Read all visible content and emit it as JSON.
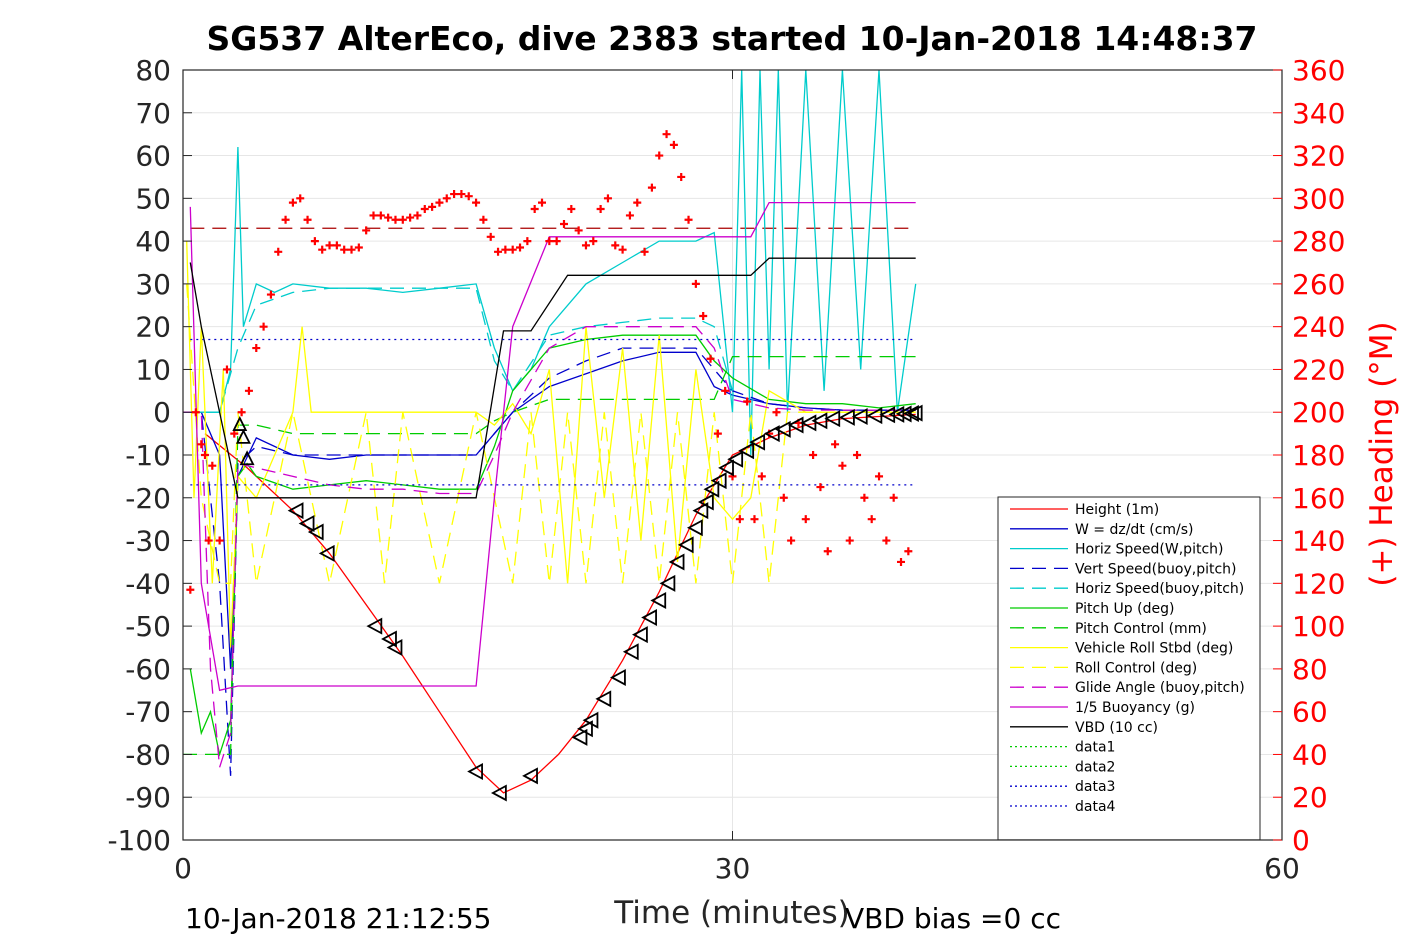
{
  "chart_data": {
    "type": "line",
    "title": "SG537 AlterEco, dive 2383 started 10-Jan-2018 14:48:37",
    "xlabel": "Time (minutes)",
    "ylabel": "",
    "y2label": "(+) Heading (°M)",
    "xlim": [
      0,
      60
    ],
    "ylim": [
      -100,
      80
    ],
    "y2lim": [
      0,
      360
    ],
    "x_ticks": [
      "0",
      "30",
      "60"
    ],
    "y_ticks": [
      "80",
      "70",
      "60",
      "50",
      "40",
      "30",
      "20",
      "10",
      "0",
      "-10",
      "-20",
      "-30",
      "-40",
      "-50",
      "-60",
      "-70",
      "-80",
      "-90",
      "-100"
    ],
    "y2_ticks": [
      "360",
      "340",
      "320",
      "300",
      "280",
      "260",
      "240",
      "220",
      "200",
      "180",
      "160",
      "140",
      "120",
      "100",
      "80",
      "60",
      "40",
      "20",
      "0"
    ],
    "grid": true,
    "legend_position": "bottom-right",
    "footer_left": "10-Jan-2018 21:12:55",
    "footer_right": "VBD bias =0 cc",
    "series": [
      {
        "name": "Height (1m)",
        "color": "#ff0000",
        "style": "solid",
        "x": [
          1.2,
          3.5,
          6,
          8,
          10,
          12,
          14,
          16,
          17.5,
          19,
          20.5,
          22,
          24,
          26,
          28,
          30,
          32,
          34,
          36,
          38,
          40
        ],
        "y": [
          -5,
          -13,
          -23,
          -33,
          -45,
          -57,
          -70,
          -83,
          -89,
          -86,
          -80,
          -72,
          -58,
          -42,
          -24,
          -10,
          -6,
          -3,
          -1.5,
          -1,
          -0.5
        ]
      },
      {
        "name": "W = dz/dt (cm/s)",
        "color": "#0000cc",
        "style": "solid",
        "x": [
          0,
          1,
          2,
          2.6,
          3,
          4,
          6,
          8,
          10,
          12,
          14,
          16,
          17,
          18,
          19,
          20,
          22,
          24,
          26,
          28,
          29,
          30,
          32,
          34,
          36,
          38,
          40
        ],
        "y": [
          0,
          0,
          -10,
          -60,
          -15,
          -6,
          -10,
          -11,
          -10,
          -10,
          -10,
          -10,
          -5,
          0,
          3,
          6,
          9,
          12,
          14,
          14,
          6,
          4,
          2,
          1,
          0.5,
          0.5,
          0.5
        ]
      },
      {
        "name": "Horiz Speed(W,pitch)",
        "color": "#00cccc",
        "style": "solid",
        "x": [
          0,
          1,
          2,
          2.6,
          3,
          3.3,
          4,
          5,
          6,
          8,
          10,
          12,
          14,
          16,
          17,
          18,
          19,
          20,
          22,
          24,
          26,
          28,
          29,
          30,
          30.5,
          31,
          31.5,
          32,
          32.5,
          33,
          34,
          35,
          36,
          37,
          38,
          39,
          40
        ],
        "y": [
          0,
          0,
          0,
          10,
          62,
          20,
          30,
          28,
          30,
          29,
          29,
          28,
          29,
          30,
          15,
          5,
          10,
          20,
          30,
          35,
          40,
          40,
          42,
          0,
          80,
          -10,
          80,
          10,
          80,
          0,
          80,
          5,
          80,
          10,
          80,
          0,
          30
        ]
      },
      {
        "name": "Vert Speed(buoy,pitch)",
        "color": "#0000cc",
        "style": "dashed",
        "x": [
          0,
          1,
          2,
          2.6,
          3,
          4,
          6,
          8,
          10,
          12,
          14,
          16,
          17,
          18,
          20,
          22,
          24,
          26,
          28,
          30,
          32,
          34,
          36,
          38,
          40
        ],
        "y": [
          0,
          0,
          -40,
          -85,
          -12,
          -8,
          -10,
          -10,
          -10,
          -10,
          -10,
          -10,
          -5,
          0,
          8,
          12,
          15,
          15,
          15,
          5,
          2,
          1,
          0.5,
          0.5,
          0.5
        ]
      },
      {
        "name": "Horiz Speed(buoy,pitch)",
        "color": "#00cccc",
        "style": "dashed",
        "x": [
          0,
          2,
          3,
          4,
          6,
          8,
          10,
          12,
          14,
          16,
          17,
          18,
          20,
          22,
          24,
          26,
          28,
          29,
          30
        ],
        "y": [
          0,
          0,
          15,
          25,
          28,
          29,
          29,
          29,
          29,
          29,
          12,
          5,
          18,
          20,
          21,
          22,
          22,
          20,
          5
        ]
      },
      {
        "name": "Pitch Up (deg)",
        "color": "#00cc00",
        "style": "solid",
        "x": [
          0.4,
          1,
          1.5,
          2,
          2.6,
          3,
          3.5,
          4,
          6,
          8,
          10,
          12,
          14,
          16,
          17,
          18,
          20,
          22,
          24,
          26,
          28,
          29,
          30,
          32,
          34,
          36,
          38,
          40
        ],
        "y": [
          -60,
          -75,
          -70,
          -80,
          -72,
          -15,
          -12,
          -15,
          -18,
          -17,
          -16,
          -17,
          -18,
          -18,
          -8,
          5,
          15,
          17,
          18,
          18,
          18,
          12,
          8,
          3,
          2,
          2,
          1,
          2
        ]
      },
      {
        "name": "Pitch Control (mm)",
        "color": "#00cc00",
        "style": "dashed",
        "x": [
          0,
          2,
          2.6,
          3,
          4,
          6,
          8,
          10,
          12,
          14,
          16,
          17,
          18,
          20,
          22,
          24,
          26,
          28,
          29,
          30,
          32,
          34,
          36,
          38,
          40
        ],
        "y": [
          -80,
          -80,
          -80,
          -3,
          -3,
          -5,
          -5,
          -5,
          -5,
          -5,
          -5,
          -2,
          0,
          3,
          3,
          3,
          3,
          3,
          3,
          13,
          13,
          13,
          13,
          13,
          13
        ]
      },
      {
        "name": "Vehicle Roll Stbd (deg)",
        "color": "#ffff00",
        "style": "solid",
        "x": [
          0.2,
          0.6,
          1,
          1.6,
          2.2,
          2.6,
          3,
          4,
          5,
          6,
          6.5,
          7,
          8,
          10,
          12,
          14,
          16,
          17,
          18,
          19,
          20,
          21,
          22,
          23,
          24,
          25,
          26,
          27,
          28,
          29,
          30,
          31,
          32,
          34,
          36,
          38,
          40
        ],
        "y": [
          40,
          -20,
          20,
          -40,
          10,
          -55,
          -15,
          -20,
          -10,
          0,
          20,
          0,
          0,
          0,
          0,
          0,
          0,
          -3,
          2,
          -5,
          10,
          -40,
          20,
          -20,
          15,
          -30,
          18,
          -35,
          10,
          -20,
          -25,
          -20,
          5,
          0,
          0,
          0,
          0
        ]
      },
      {
        "name": "Roll Control (deg)",
        "color": "#ffff00",
        "style": "dashed",
        "x": [
          0.2,
          1,
          2,
          2.6,
          3,
          4,
          6,
          8,
          10,
          11,
          12,
          14,
          16,
          18,
          19,
          20,
          21,
          22,
          23,
          24,
          25,
          26,
          27,
          28,
          29,
          30,
          31,
          32,
          33,
          34,
          36,
          38,
          40
        ],
        "y": [
          30,
          -20,
          -40,
          -40,
          0,
          -40,
          0,
          -40,
          0,
          -40,
          0,
          -40,
          0,
          -40,
          0,
          -40,
          0,
          -40,
          0,
          -40,
          0,
          -40,
          0,
          -40,
          0,
          -40,
          0,
          -40,
          0,
          0,
          0,
          0,
          0
        ]
      },
      {
        "name": "Glide Angle (buoy,pitch)",
        "color": "#cc00cc",
        "style": "dashed",
        "x": [
          0,
          1,
          1.5,
          2,
          2.6,
          3,
          4,
          6,
          8,
          10,
          12,
          14,
          16,
          17,
          18,
          20,
          22,
          24,
          26,
          28,
          29,
          30,
          32,
          34,
          36,
          38,
          40
        ],
        "y": [
          0,
          0,
          -60,
          -83,
          -75,
          -12,
          -13,
          -15,
          -17,
          -18,
          -18,
          -19,
          -19,
          -10,
          0,
          15,
          20,
          20,
          20,
          20,
          15,
          3,
          1,
          0.5,
          0.5,
          0.5,
          0.5
        ]
      },
      {
        "name": "1/5 Buoyancy (g)",
        "color": "#cc00cc",
        "style": "solid",
        "x": [
          0.4,
          1,
          2,
          3,
          6,
          8,
          10,
          12,
          14,
          16,
          17,
          18,
          20,
          22,
          24,
          26,
          28,
          30,
          31,
          32,
          34,
          36,
          38,
          40
        ],
        "y": [
          48,
          -40,
          -65,
          -64,
          -64,
          -64,
          -64,
          -64,
          -64,
          -64,
          -20,
          20,
          41,
          41,
          41,
          41,
          41,
          41,
          41,
          49,
          49,
          49,
          49,
          49
        ]
      },
      {
        "name": "VBD (10 cc)",
        "color": "#000000",
        "style": "solid",
        "x": [
          0.4,
          1,
          2,
          3,
          6,
          10,
          14,
          16,
          17.5,
          19,
          21,
          24,
          28,
          30,
          31,
          32,
          34,
          36,
          38,
          40
        ],
        "y": [
          35,
          20,
          0,
          -20,
          -20,
          -20,
          -20,
          -20,
          19,
          19,
          32,
          32,
          32,
          32,
          32,
          36,
          36,
          36,
          36,
          36
        ]
      },
      {
        "name": "data1",
        "color": "#00cc00",
        "style": "dotted",
        "x": [],
        "y": []
      },
      {
        "name": "data2",
        "color": "#00cc00",
        "style": "dotted",
        "x": [],
        "y": []
      },
      {
        "name": "data3",
        "color": "#0000cc",
        "style": "dotted",
        "x": [
          0.4,
          40
        ],
        "y": [
          17,
          17
        ]
      },
      {
        "name": "data4",
        "color": "#0000cc",
        "style": "dotted",
        "x": [
          0.4,
          40
        ],
        "y": [
          -17,
          -17
        ]
      }
    ],
    "heading_ref": {
      "color": "#aa0000",
      "y2": 286
    },
    "heading": {
      "color": "#ff0000",
      "x": [
        0.4,
        0.7,
        1,
        1.2,
        1.4,
        1.6,
        2,
        2.4,
        2.8,
        3.2,
        3.6,
        4,
        4.4,
        4.8,
        5.2,
        5.6,
        6,
        6.4,
        6.8,
        7.2,
        7.6,
        8,
        8.4,
        8.8,
        9.2,
        9.6,
        10,
        10.4,
        10.8,
        11.2,
        11.6,
        12,
        12.4,
        12.8,
        13.2,
        13.6,
        14,
        14.4,
        14.8,
        15.2,
        15.6,
        16,
        16.4,
        16.8,
        17.2,
        17.6,
        18,
        18.4,
        18.8,
        19.2,
        19.6,
        20,
        20.4,
        20.8,
        21.2,
        21.6,
        22,
        22.4,
        22.8,
        23.2,
        23.6,
        24,
        24.4,
        24.8,
        25.2,
        25.6,
        26,
        26.4,
        26.8,
        27.2,
        27.6,
        28,
        28.4,
        28.8,
        29.2,
        29.6,
        30,
        30.4,
        30.8,
        31.2,
        31.6,
        32,
        32.4,
        32.8,
        33.2,
        33.6,
        34,
        34.4,
        34.8,
        35.2,
        35.6,
        36,
        36.4,
        36.8,
        37.2,
        37.6,
        38,
        38.4,
        38.8,
        39.2,
        39.6,
        40
      ],
      "y2": [
        117,
        200,
        185,
        180,
        140,
        175,
        140,
        220,
        190,
        200,
        210,
        230,
        240,
        255,
        275,
        290,
        298,
        300,
        290,
        280,
        276,
        278,
        278,
        276,
        276,
        277,
        285,
        292,
        292,
        291,
        290,
        290,
        291,
        292,
        295,
        296,
        298,
        300,
        302,
        302,
        301,
        298,
        290,
        282,
        275,
        276,
        276,
        277,
        280,
        295,
        298,
        280,
        280,
        288,
        295,
        285,
        278,
        280,
        295,
        300,
        278,
        276,
        292,
        298,
        275,
        305,
        320,
        330,
        325,
        310,
        290,
        260,
        245,
        225,
        190,
        210,
        170,
        150,
        205,
        150,
        170,
        190,
        200,
        160,
        140,
        195,
        150,
        180,
        165,
        135,
        185,
        175,
        140,
        180,
        160,
        150,
        170,
        140,
        160,
        130,
        135
      ]
    },
    "markers": {
      "color": "#000000",
      "x": [
        3.1,
        3.3,
        3.5,
        6.2,
        6.8,
        7.3,
        7.9,
        10.5,
        11.3,
        11.6,
        16,
        17.3,
        19,
        21.7,
        22,
        22.3,
        23,
        23.8,
        24.5,
        25,
        25.5,
        26,
        26.5,
        27,
        27.5,
        28,
        28.3,
        28.6,
        28.9,
        29.3,
        29.7,
        30.2,
        30.8,
        31.4,
        32.2,
        32.8,
        33.5,
        34.2,
        34.8,
        35.5,
        36.3,
        37,
        37.8,
        38.5,
        39,
        39.4,
        39.8,
        40
      ],
      "y": [
        -3,
        -6,
        -11,
        -23,
        -26,
        -28,
        -33,
        -50,
        -53,
        -55,
        -84,
        -89,
        -85,
        -76,
        -74,
        -72,
        -67,
        -62,
        -56,
        -52,
        -48,
        -44,
        -40,
        -35,
        -31,
        -27,
        -23,
        -21,
        -18,
        -16,
        -13,
        -11,
        -9,
        -7,
        -5,
        -4,
        -3,
        -2.5,
        -2,
        -1.5,
        -1.2,
        -1,
        -0.8,
        -0.6,
        -0.5,
        -0.4,
        -0.3,
        -0.2
      ]
    }
  }
}
